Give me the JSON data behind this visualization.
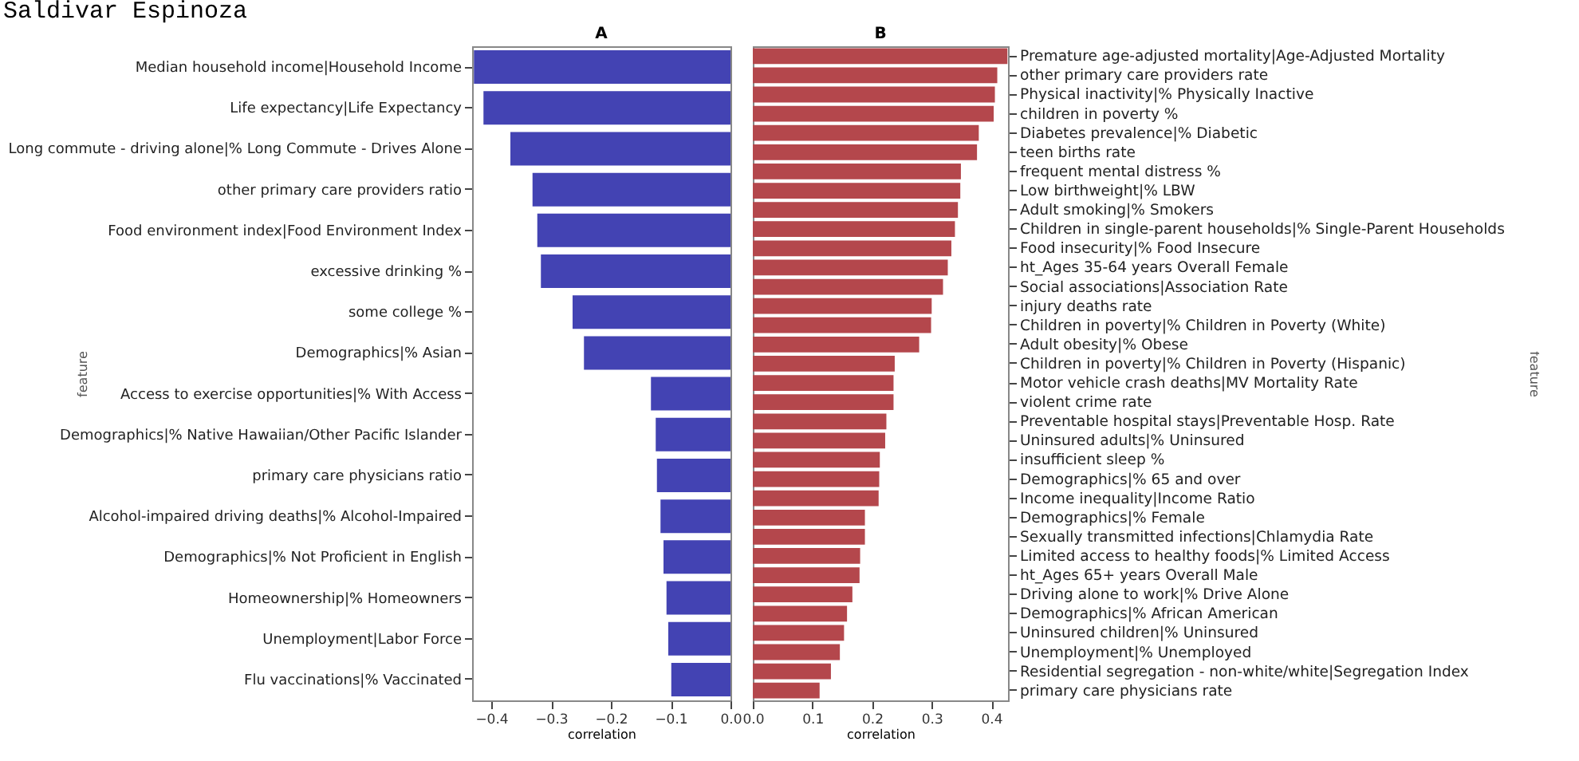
{
  "chart_data": [
    {
      "type": "bar",
      "orientation": "horizontal",
      "title": "A",
      "xlabel": "correlation",
      "ylabel": "feature",
      "annotations": [
        "Saldivar Espinoza"
      ],
      "color": "#4343b3",
      "xlim": [
        -0.432,
        0
      ],
      "xticks": [
        -0.4,
        -0.3,
        -0.2,
        -0.1,
        {
          "value": 0,
          "label": "0.0"
        }
      ],
      "categories": [
        "Median household income|Household Income",
        "Life expectancy|Life Expectancy",
        "Long commute - driving alone|% Long Commute - Drives Alone",
        "other primary care providers ratio",
        "Food environment index|Food Environment Index",
        "excessive drinking %",
        "some college %",
        "Demographics|% Asian",
        "Access to exercise opportunities|% With Access",
        "Demographics|% Native Hawaiian/Other Pacific Islander",
        "primary care physicians ratio",
        "Alcohol-impaired driving deaths|% Alcohol-Impaired",
        "Demographics|% Not Proficient in English",
        "Homeownership|% Homeowners",
        "Unemployment|Labor Force",
        "Flu vaccinations|% Vaccinated"
      ],
      "values": [
        -0.429,
        -0.413,
        -0.368,
        -0.331,
        -0.323,
        -0.317,
        -0.264,
        -0.245,
        -0.133,
        -0.125,
        -0.123,
        -0.117,
        -0.112,
        -0.107,
        -0.104,
        -0.099
      ]
    },
    {
      "type": "bar",
      "orientation": "horizontal",
      "title": "B",
      "xlabel": "correlation",
      "ylabel": "feature",
      "color": "#b4474c",
      "xlim": [
        0,
        0.428
      ],
      "xticks": [
        {
          "value": 0,
          "label": "0.0"
        },
        0.1,
        0.2,
        0.3,
        0.4
      ],
      "categories": [
        "Premature age-adjusted mortality|Age-Adjusted Mortality",
        "other primary care providers rate",
        "Physical inactivity|% Physically Inactive",
        "children in poverty %",
        "Diabetes prevalence|% Diabetic",
        "teen births rate",
        "frequent mental distress %",
        "Low birthweight|% LBW",
        "Adult smoking|% Smokers",
        "Children in single-parent households|% Single-Parent Households",
        "Food insecurity|% Food Insecure",
        "ht_Ages 35-64 years Overall Female",
        "Social associations|Association Rate",
        "injury deaths rate",
        "Children in poverty|% Children in Poverty (White)",
        "Adult obesity|% Obese",
        "Children in poverty|% Children in Poverty (Hispanic)",
        "Motor vehicle crash deaths|MV Mortality Rate",
        "violent crime rate",
        "Preventable hospital stays|Preventable Hosp. Rate",
        "Uninsured adults|% Uninsured",
        "insufficient sleep %",
        "Demographics|% 65 and over",
        "Income inequality|Income Ratio",
        "Demographics|% Female",
        "Sexually transmitted infections|Chlamydia Rate",
        "Limited access to healthy foods|% Limited Access",
        "ht_Ages 65+ years Overall Male",
        "Driving alone to work|% Drive Alone",
        "Demographics|% African American",
        "Uninsured children|% Uninsured",
        "Unemployment|% Unemployed",
        "Residential segregation - non-white/white|Segregation Index",
        "primary care physicians rate"
      ],
      "values": [
        0.427,
        0.41,
        0.406,
        0.404,
        0.379,
        0.376,
        0.349,
        0.348,
        0.344,
        0.339,
        0.333,
        0.327,
        0.319,
        0.3,
        0.299,
        0.279,
        0.238,
        0.236,
        0.236,
        0.224,
        0.222,
        0.213,
        0.212,
        0.211,
        0.188,
        0.188,
        0.18,
        0.179,
        0.167,
        0.158,
        0.153,
        0.146,
        0.131,
        0.112
      ]
    }
  ]
}
